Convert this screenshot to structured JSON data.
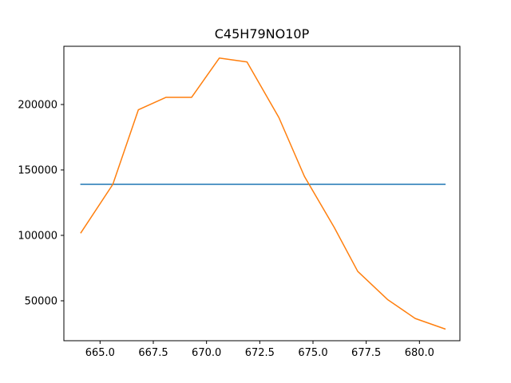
{
  "chart_data": {
    "type": "line",
    "title": "C45H79NO10P",
    "xlabel": "",
    "ylabel": "",
    "xlim": [
      663.3,
      681.9
    ],
    "ylim": [
      19500,
      244500
    ],
    "grid": false,
    "x_ticks": [
      {
        "value": 665.0,
        "label": "665.0"
      },
      {
        "value": 667.5,
        "label": "667.5"
      },
      {
        "value": 670.0,
        "label": "670.0"
      },
      {
        "value": 672.5,
        "label": "672.5"
      },
      {
        "value": 675.0,
        "label": "675.0"
      },
      {
        "value": 677.5,
        "label": "677.5"
      },
      {
        "value": 680.0,
        "label": "680.0"
      }
    ],
    "y_ticks": [
      {
        "value": 50000,
        "label": "50000"
      },
      {
        "value": 100000,
        "label": "100000"
      },
      {
        "value": 150000,
        "label": "150000"
      },
      {
        "value": 200000,
        "label": "200000"
      }
    ],
    "series": [
      {
        "color": "#1f77b4",
        "x": [
          664.1,
          681.2
        ],
        "y": [
          139000,
          139000
        ]
      },
      {
        "color": "#ff7f0e",
        "x": [
          664.1,
          665.6,
          666.8,
          668.1,
          669.3,
          670.6,
          671.9,
          673.4,
          674.6,
          676.0,
          677.1,
          678.5,
          679.8,
          681.2
        ],
        "y": [
          102000,
          139000,
          196000,
          205500,
          205500,
          235500,
          232500,
          190000,
          145000,
          106000,
          72500,
          51000,
          36500,
          28500
        ]
      }
    ]
  }
}
